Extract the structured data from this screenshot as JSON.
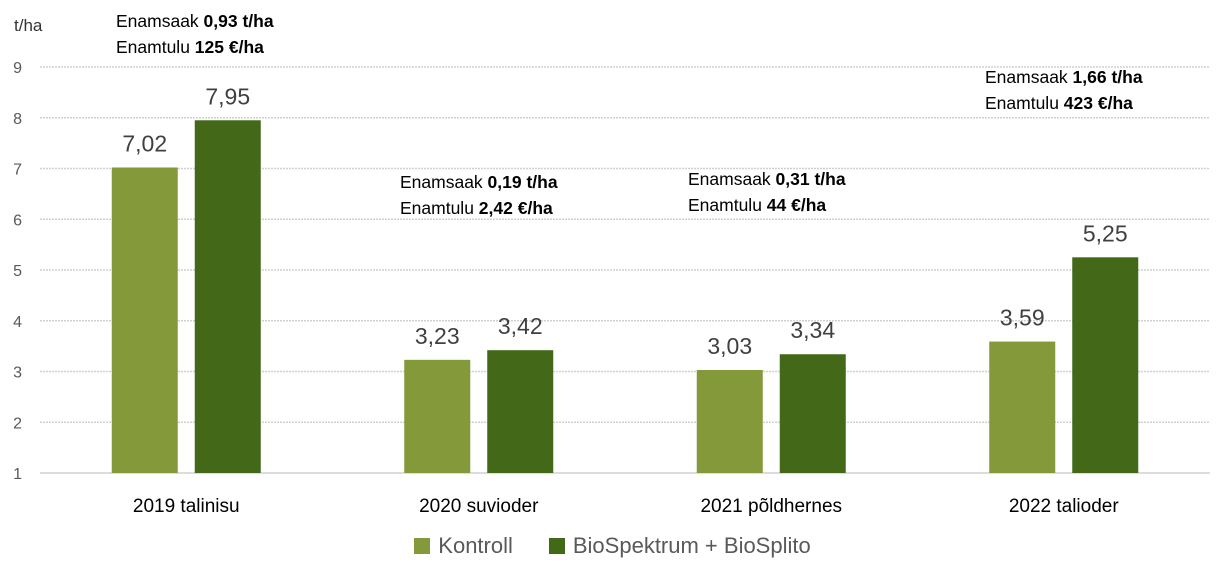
{
  "chart_data": {
    "type": "bar",
    "ylabel": "t/ha",
    "ylim": [
      1,
      9
    ],
    "yticks": [
      1,
      2,
      3,
      4,
      5,
      6,
      7,
      8,
      9
    ],
    "grid": true,
    "legend_position": "bottom",
    "categories": [
      "2019 talinisu",
      "2020 suvioder",
      "2021 põldhernes",
      "2022 talioder"
    ],
    "series": [
      {
        "name": "Kontroll",
        "color": "#84993a",
        "values": [
          7.02,
          3.23,
          3.03,
          3.59
        ],
        "labels": [
          "7,02",
          "3,23",
          "3,03",
          "3,59"
        ]
      },
      {
        "name": "BioSpektrum + BioSplito",
        "color": "#426818",
        "values": [
          7.95,
          3.42,
          3.34,
          5.25
        ],
        "labels": [
          "7,95",
          "3,42",
          "3,34",
          "5,25"
        ]
      }
    ],
    "annotations": [
      {
        "l1": "Enamsaak ",
        "v1": "0,93 t/ha",
        "l2": "Enamtulu ",
        "v2": "125 €/ha"
      },
      {
        "l1": "Enamsaak ",
        "v1": "0,19 t/ha",
        "l2": "Enamtulu ",
        "v2": "2,42 €/ha"
      },
      {
        "l1": "Enamsaak ",
        "v1": "0,31 t/ha",
        "l2": "Enamtulu ",
        "v2": "44 €/ha"
      },
      {
        "l1": "Enamsaak ",
        "v1": "1,66 t/ha",
        "l2": "Enamtulu ",
        "v2": "423 €/ha"
      }
    ]
  }
}
